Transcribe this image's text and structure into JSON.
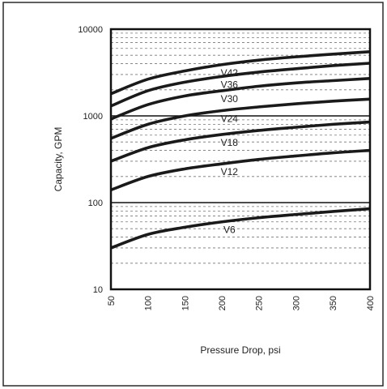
{
  "chart_data": {
    "type": "line",
    "title": "",
    "xlabel": "Pressure Drop, psi",
    "ylabel": "Capacity, GPM",
    "x_scale": "linear",
    "y_scale": "log",
    "xlim": [
      50,
      400
    ],
    "ylim": [
      10,
      10000
    ],
    "x_ticks": [
      "50",
      "100",
      "150",
      "200",
      "250",
      "300",
      "350",
      "400"
    ],
    "y_ticks": [
      "10",
      "100",
      "1000",
      "10000"
    ],
    "grid": true,
    "line_color": "#1a1a1a",
    "x": [
      50,
      100,
      150,
      200,
      250,
      300,
      350,
      400
    ],
    "series": [
      {
        "name": "V42",
        "values": [
          1800,
          2650,
          3300,
          3900,
          4400,
          4800,
          5150,
          5500
        ]
      },
      {
        "name": "V36",
        "values": [
          1300,
          1950,
          2450,
          2850,
          3200,
          3500,
          3800,
          4050
        ]
      },
      {
        "name": "V30",
        "values": [
          920,
          1350,
          1700,
          1950,
          2200,
          2400,
          2550,
          2700
        ]
      },
      {
        "name": "V24",
        "values": [
          550,
          800,
          1000,
          1150,
          1270,
          1380,
          1480,
          1560
        ]
      },
      {
        "name": "V18",
        "values": [
          300,
          430,
          530,
          610,
          680,
          740,
          800,
          850
        ]
      },
      {
        "name": "V12",
        "values": [
          140,
          200,
          245,
          280,
          315,
          345,
          375,
          400
        ]
      },
      {
        "name": "V6",
        "values": [
          30,
          43,
          52,
          60,
          67,
          73,
          79,
          85
        ]
      }
    ]
  }
}
